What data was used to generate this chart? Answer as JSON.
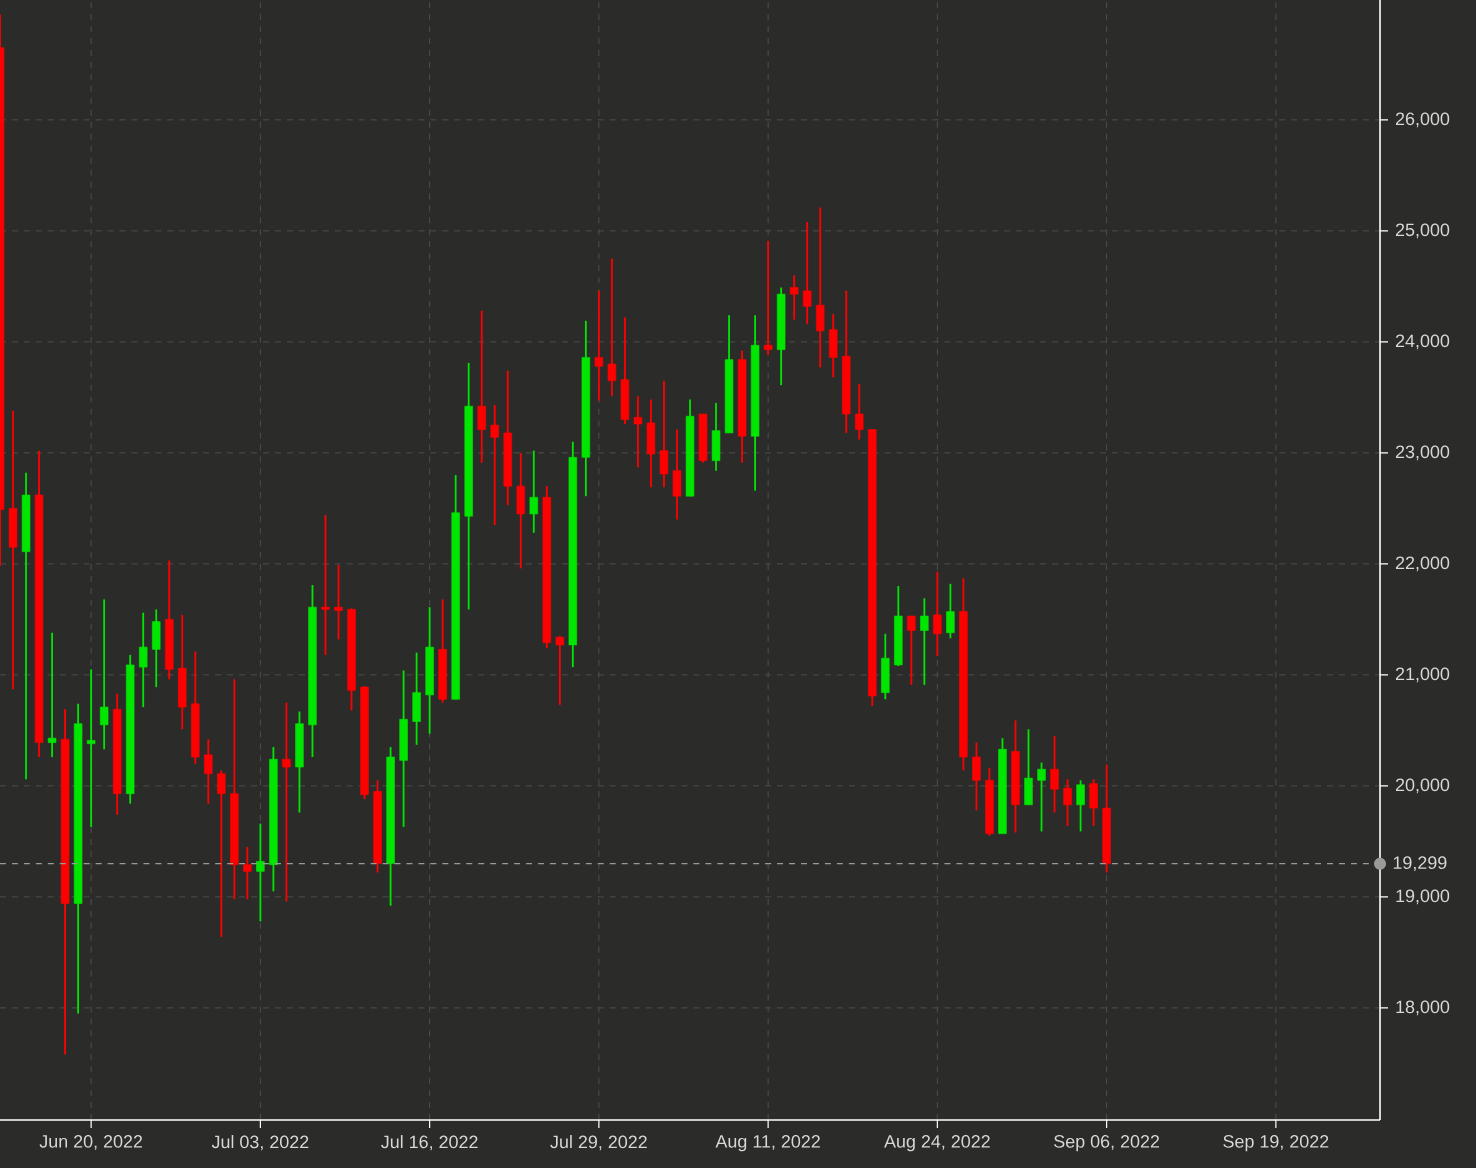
{
  "chart_data": {
    "type": "candlestick",
    "x": [
      "2022-06-13",
      "2022-06-14",
      "2022-06-15",
      "2022-06-16",
      "2022-06-17",
      "2022-06-18",
      "2022-06-19",
      "2022-06-20",
      "2022-06-21",
      "2022-06-22",
      "2022-06-23",
      "2022-06-24",
      "2022-06-25",
      "2022-06-26",
      "2022-06-27",
      "2022-06-28",
      "2022-06-29",
      "2022-06-30",
      "2022-07-01",
      "2022-07-02",
      "2022-07-03",
      "2022-07-04",
      "2022-07-05",
      "2022-07-06",
      "2022-07-07",
      "2022-07-08",
      "2022-07-09",
      "2022-07-10",
      "2022-07-11",
      "2022-07-12",
      "2022-07-13",
      "2022-07-14",
      "2022-07-15",
      "2022-07-16",
      "2022-07-17",
      "2022-07-18",
      "2022-07-19",
      "2022-07-20",
      "2022-07-21",
      "2022-07-22",
      "2022-07-23",
      "2022-07-24",
      "2022-07-25",
      "2022-07-26",
      "2022-07-27",
      "2022-07-28",
      "2022-07-29",
      "2022-07-30",
      "2022-07-31",
      "2022-08-01",
      "2022-08-02",
      "2022-08-03",
      "2022-08-04",
      "2022-08-05",
      "2022-08-06",
      "2022-08-07",
      "2022-08-08",
      "2022-08-09",
      "2022-08-10",
      "2022-08-11",
      "2022-08-12",
      "2022-08-13",
      "2022-08-14",
      "2022-08-15",
      "2022-08-16",
      "2022-08-17",
      "2022-08-18",
      "2022-08-19",
      "2022-08-20",
      "2022-08-21",
      "2022-08-22",
      "2022-08-23",
      "2022-08-24",
      "2022-08-25",
      "2022-08-26",
      "2022-08-27",
      "2022-08-28",
      "2022-08-29",
      "2022-08-30",
      "2022-08-31",
      "2022-09-01",
      "2022-09-02",
      "2022-09-03",
      "2022-09-04",
      "2022-09-05",
      "2022-09-06"
    ],
    "ohlc": [
      [
        26650,
        26950,
        21980,
        22490
      ],
      [
        22500,
        23380,
        20870,
        22150
      ],
      [
        22110,
        22820,
        20060,
        22620
      ],
      [
        22620,
        23020,
        20260,
        20390
      ],
      [
        20390,
        21380,
        20260,
        20430
      ],
      [
        20420,
        20690,
        17580,
        18940
      ],
      [
        18940,
        20740,
        17950,
        20560
      ],
      [
        20380,
        21050,
        19630,
        20410
      ],
      [
        20550,
        21680,
        20330,
        20710
      ],
      [
        20690,
        20830,
        19740,
        19930
      ],
      [
        19930,
        21180,
        19840,
        21090
      ],
      [
        21070,
        21560,
        20710,
        21250
      ],
      [
        21230,
        21590,
        20890,
        21480
      ],
      [
        21500,
        22030,
        20960,
        21050
      ],
      [
        21060,
        21540,
        20510,
        20710
      ],
      [
        20740,
        21210,
        20200,
        20260
      ],
      [
        20280,
        20420,
        19840,
        20110
      ],
      [
        20110,
        20140,
        18640,
        19930
      ],
      [
        19930,
        20960,
        18980,
        19290
      ],
      [
        19290,
        19450,
        18980,
        19230
      ],
      [
        19230,
        19660,
        18780,
        19320
      ],
      [
        19290,
        20350,
        19050,
        20240
      ],
      [
        20240,
        20750,
        18960,
        20170
      ],
      [
        20170,
        20670,
        19760,
        20560
      ],
      [
        20550,
        21810,
        20260,
        21610
      ],
      [
        21610,
        22440,
        21180,
        21590
      ],
      [
        21610,
        21990,
        21320,
        21580
      ],
      [
        21590,
        21600,
        20680,
        20860
      ],
      [
        20890,
        20900,
        19880,
        19920
      ],
      [
        19950,
        20050,
        19220,
        19300
      ],
      [
        19300,
        20350,
        18920,
        20260
      ],
      [
        20230,
        21040,
        19630,
        20600
      ],
      [
        20580,
        21200,
        20370,
        20840
      ],
      [
        20820,
        21610,
        20470,
        21250
      ],
      [
        21230,
        21680,
        20750,
        20780
      ],
      [
        20780,
        22800,
        20780,
        22460
      ],
      [
        22430,
        23810,
        21590,
        23420
      ],
      [
        23420,
        24280,
        22910,
        23210
      ],
      [
        23250,
        23430,
        22350,
        23140
      ],
      [
        23180,
        23740,
        22530,
        22700
      ],
      [
        22700,
        23000,
        21960,
        22450
      ],
      [
        22450,
        23020,
        22280,
        22600
      ],
      [
        22600,
        22700,
        21240,
        21290
      ],
      [
        21340,
        21350,
        20730,
        21270
      ],
      [
        21270,
        23100,
        21070,
        22960
      ],
      [
        22960,
        24190,
        22610,
        23860
      ],
      [
        23860,
        24460,
        23470,
        23780
      ],
      [
        23800,
        24750,
        23510,
        23650
      ],
      [
        23660,
        24220,
        23260,
        23300
      ],
      [
        23320,
        23510,
        22870,
        23260
      ],
      [
        23270,
        23480,
        22690,
        22990
      ],
      [
        23020,
        23650,
        22690,
        22810
      ],
      [
        22840,
        23210,
        22400,
        22610
      ],
      [
        22610,
        23480,
        22610,
        23330
      ],
      [
        23350,
        23350,
        22910,
        22930
      ],
      [
        22930,
        23450,
        22840,
        23200
      ],
      [
        23180,
        24240,
        23180,
        23840
      ],
      [
        23840,
        23920,
        22910,
        23150
      ],
      [
        23150,
        24240,
        22660,
        23970
      ],
      [
        23970,
        24910,
        23880,
        23930
      ],
      [
        23930,
        24490,
        23610,
        24430
      ],
      [
        24490,
        24600,
        24200,
        24430
      ],
      [
        24460,
        25080,
        24160,
        24320
      ],
      [
        24330,
        25210,
        23770,
        24100
      ],
      [
        24110,
        24250,
        23680,
        23860
      ],
      [
        23870,
        24460,
        23180,
        23350
      ],
      [
        23350,
        23620,
        23120,
        23210
      ],
      [
        23210,
        23210,
        20720,
        20810
      ],
      [
        20840,
        21370,
        20780,
        21150
      ],
      [
        21090,
        21800,
        21080,
        21530
      ],
      [
        21530,
        21530,
        20910,
        21400
      ],
      [
        21400,
        21690,
        20910,
        21530
      ],
      [
        21540,
        21930,
        21170,
        21370
      ],
      [
        21380,
        21820,
        21330,
        21570
      ],
      [
        21570,
        21870,
        20140,
        20260
      ],
      [
        20260,
        20390,
        19780,
        20050
      ],
      [
        20050,
        20160,
        19550,
        19570
      ],
      [
        19570,
        20430,
        19570,
        20330
      ],
      [
        20310,
        20590,
        19580,
        19830
      ],
      [
        19830,
        20510,
        19830,
        20070
      ],
      [
        20050,
        20210,
        19590,
        20150
      ],
      [
        20150,
        20450,
        19760,
        19970
      ],
      [
        19980,
        20060,
        19640,
        19830
      ],
      [
        19830,
        20050,
        19590,
        20010
      ],
      [
        20020,
        20060,
        19640,
        19800
      ],
      [
        19800,
        20190,
        19220,
        19299
      ]
    ],
    "colors": [
      "#ff0000",
      "#ff0000",
      "#00e600",
      "#ff0000",
      "#00e600",
      "#ff0000",
      "#00e600",
      "#00e600",
      "#00e600",
      "#ff0000",
      "#00e600",
      "#00e600",
      "#00e600",
      "#ff0000",
      "#ff0000",
      "#ff0000",
      "#ff0000",
      "#ff0000",
      "#ff0000",
      "#ff0000",
      "#00e600",
      "#00e600",
      "#ff0000",
      "#00e600",
      "#00e600",
      "#ff0000",
      "#ff0000",
      "#ff0000",
      "#ff0000",
      "#ff0000",
      "#00e600",
      "#00e600",
      "#00e600",
      "#00e600",
      "#ff0000",
      "#00e600",
      "#00e600",
      "#ff0000",
      "#ff0000",
      "#ff0000",
      "#ff0000",
      "#00e600",
      "#ff0000",
      "#ff0000",
      "#00e600",
      "#00e600",
      "#ff0000",
      "#ff0000",
      "#ff0000",
      "#ff0000",
      "#ff0000",
      "#ff0000",
      "#ff0000",
      "#00e600",
      "#ff0000",
      "#00e600",
      "#00e600",
      "#ff0000",
      "#00e600",
      "#ff0000",
      "#00e600",
      "#ff0000",
      "#ff0000",
      "#ff0000",
      "#ff0000",
      "#ff0000",
      "#ff0000",
      "#ff0000",
      "#00e600",
      "#00e600",
      "#ff0000",
      "#00e600",
      "#ff0000",
      "#00e600",
      "#ff0000",
      "#ff0000",
      "#ff0000",
      "#00e600",
      "#ff0000",
      "#00e600",
      "#00e600",
      "#ff0000",
      "#ff0000",
      "#00e600",
      "#ff0000",
      "#ff0000"
    ],
    "xlim": [
      "2022-06-13",
      "2022-09-27"
    ],
    "xticks": [
      {
        "value": "2022-06-20",
        "label": "Jun 20, 2022"
      },
      {
        "value": "2022-07-03",
        "label": "Jul 03, 2022"
      },
      {
        "value": "2022-07-16",
        "label": "Jul 16, 2022"
      },
      {
        "value": "2022-07-29",
        "label": "Jul 29, 2022"
      },
      {
        "value": "2022-08-11",
        "label": "Aug 11, 2022"
      },
      {
        "value": "2022-08-24",
        "label": "Aug 24, 2022"
      },
      {
        "value": "2022-09-06",
        "label": "Sep 06, 2022"
      },
      {
        "value": "2022-09-19",
        "label": "Sep 19, 2022"
      }
    ],
    "ylim": [
      16990,
      27080
    ],
    "yticks": [
      {
        "value": 18000,
        "label": "18,000"
      },
      {
        "value": 19000,
        "label": "19,000"
      },
      {
        "value": 20000,
        "label": "20,000"
      },
      {
        "value": 21000,
        "label": "21,000"
      },
      {
        "value": 22000,
        "label": "22,000"
      },
      {
        "value": 23000,
        "label": "23,000"
      },
      {
        "value": 24000,
        "label": "24,000"
      },
      {
        "value": 25000,
        "label": "25,000"
      },
      {
        "value": 26000,
        "label": "26,000"
      }
    ],
    "ref_lines": [
      {
        "axis": "y",
        "value": 19299,
        "label": "19,299",
        "color": "#9a9a9a",
        "line_style": "dashed"
      }
    ],
    "grid": true
  }
}
